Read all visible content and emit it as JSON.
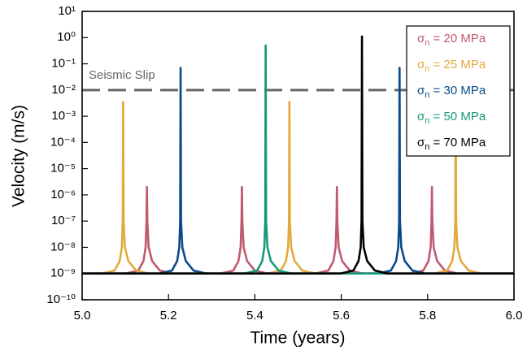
{
  "chart_data": {
    "type": "line",
    "x_label": "Time (years)",
    "y_label": "Velocity (m/s)",
    "log_y": true,
    "xlim": [
      5.0,
      6.0
    ],
    "xticks": [
      {
        "value": 5.0,
        "label": "5.0"
      },
      5.2,
      5.4,
      5.6,
      5.8,
      {
        "value": 6.0,
        "label": "6.0"
      }
    ],
    "ylim": [
      1e-10,
      10
    ],
    "yticks": [
      {
        "value": 10,
        "label": "10¹"
      },
      {
        "value": 1,
        "label": "10⁰"
      },
      {
        "value": 0.1,
        "label": "10⁻¹"
      },
      {
        "value": 0.01,
        "label": "10⁻²"
      },
      {
        "value": 0.001,
        "label": "10⁻³"
      },
      {
        "value": 0.0001,
        "label": "10⁻⁴"
      },
      {
        "value": 1e-05,
        "label": "10⁻⁵"
      },
      {
        "value": 1e-06,
        "label": "10⁻⁶"
      },
      {
        "value": 1e-07,
        "label": "10⁻⁷"
      },
      {
        "value": 1e-08,
        "label": "10⁻⁸"
      },
      {
        "value": 1e-09,
        "label": "10⁻⁹"
      },
      {
        "value": 1e-10,
        "label": "10⁻¹⁰"
      }
    ],
    "grid": false,
    "legend_position": "top-right",
    "reference_line": {
      "value": 0.01,
      "label": "Seismic Slip",
      "color": "#666666"
    },
    "series": [
      {
        "name": "σn = 20 MPa",
        "color": "#c05a6e",
        "x": [
          5.0,
          5.1,
          5.13,
          5.142,
          5.147,
          5.149,
          5.15,
          5.151,
          5.154,
          5.162,
          5.18,
          5.21,
          5.32,
          5.35,
          5.362,
          5.367,
          5.369,
          5.37,
          5.371,
          5.374,
          5.382,
          5.4,
          5.43,
          5.54,
          5.57,
          5.582,
          5.587,
          5.589,
          5.59,
          5.591,
          5.594,
          5.602,
          5.62,
          5.65,
          5.76,
          5.79,
          5.802,
          5.807,
          5.809,
          5.81,
          5.811,
          5.814,
          5.822,
          5.84,
          5.87,
          6.0
        ],
        "values": [
          1e-09,
          1e-09,
          1.3e-09,
          3e-09,
          1e-08,
          1e-07,
          2e-06,
          1e-07,
          1e-08,
          3e-09,
          1.3e-09,
          1e-09,
          1e-09,
          1.3e-09,
          3e-09,
          1e-08,
          1e-07,
          2e-06,
          1e-07,
          1e-08,
          3e-09,
          1.3e-09,
          1e-09,
          1e-09,
          1.3e-09,
          3e-09,
          1e-08,
          1e-07,
          2e-06,
          1e-07,
          1e-08,
          3e-09,
          1.3e-09,
          1e-09,
          1e-09,
          1.3e-09,
          3e-09,
          1e-08,
          1e-07,
          2e-06,
          1e-07,
          1e-08,
          3e-09,
          1.3e-09,
          1e-09,
          1e-09
        ]
      },
      {
        "name": "σn = 25 MPa",
        "color": "#e2a93b",
        "x": [
          5.0,
          5.045,
          5.075,
          5.087,
          5.092,
          5.094,
          5.095,
          5.096,
          5.099,
          5.107,
          5.125,
          5.155,
          5.43,
          5.46,
          5.472,
          5.477,
          5.479,
          5.48,
          5.481,
          5.484,
          5.492,
          5.51,
          5.54,
          5.815,
          5.845,
          5.857,
          5.862,
          5.864,
          5.865,
          5.866,
          5.869,
          5.877,
          5.895,
          5.925,
          6.0
        ],
        "values": [
          1e-09,
          1e-09,
          1.3e-09,
          3e-09,
          1e-08,
          1e-07,
          0.0035,
          1e-07,
          1e-08,
          3e-09,
          1.3e-09,
          1e-09,
          1e-09,
          1.3e-09,
          3e-09,
          1e-08,
          1e-07,
          0.0035,
          1e-07,
          1e-08,
          3e-09,
          1.3e-09,
          1e-09,
          1e-09,
          1.3e-09,
          3e-09,
          1e-08,
          1e-07,
          0.0035,
          1e-07,
          1e-08,
          3e-09,
          1.3e-09,
          1e-09,
          1e-09
        ]
      },
      {
        "name": "σn = 30 MPa",
        "color": "#0b4a88",
        "x": [
          5.0,
          5.178,
          5.208,
          5.22,
          5.225,
          5.227,
          5.228,
          5.229,
          5.232,
          5.24,
          5.258,
          5.288,
          5.685,
          5.715,
          5.727,
          5.732,
          5.734,
          5.735,
          5.736,
          5.739,
          5.747,
          5.765,
          5.795,
          6.0
        ],
        "values": [
          1e-09,
          1e-09,
          1.3e-09,
          3e-09,
          1e-08,
          1e-07,
          0.07,
          1e-07,
          1e-08,
          3e-09,
          1.3e-09,
          1e-09,
          1e-09,
          1.3e-09,
          3e-09,
          1e-08,
          1e-07,
          0.07,
          1e-07,
          1e-08,
          3e-09,
          1.3e-09,
          1e-09,
          1e-09
        ]
      },
      {
        "name": "σn = 50 MPa",
        "color": "#16987a",
        "x": [
          5.0,
          5.375,
          5.405,
          5.417,
          5.422,
          5.424,
          5.425,
          5.426,
          5.429,
          5.437,
          5.455,
          5.485,
          6.0
        ],
        "values": [
          1e-09,
          1e-09,
          1.3e-09,
          3e-09,
          1e-08,
          1e-07,
          0.5,
          1e-07,
          1e-08,
          3e-09,
          1.3e-09,
          1e-09,
          1e-09
        ]
      },
      {
        "name": "σn = 70 MPa",
        "color": "#000000",
        "x": [
          5.0,
          5.598,
          5.628,
          5.64,
          5.645,
          5.647,
          5.648,
          5.649,
          5.652,
          5.66,
          5.678,
          5.708,
          6.0
        ],
        "values": [
          1e-09,
          1e-09,
          1.3e-09,
          3e-09,
          1e-08,
          1e-07,
          1.1,
          1e-07,
          1e-08,
          3e-09,
          1.3e-09,
          1e-09,
          1e-09
        ]
      }
    ]
  }
}
